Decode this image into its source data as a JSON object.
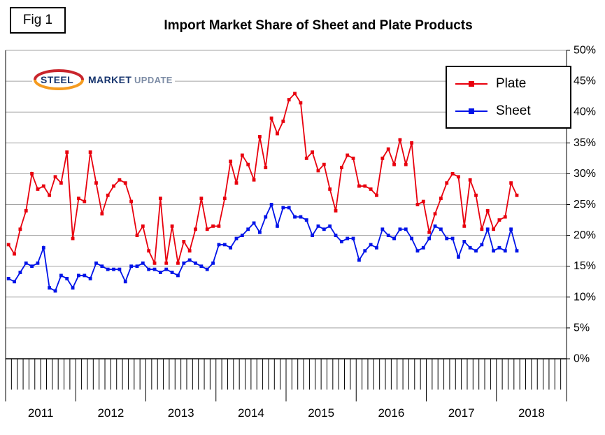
{
  "figure_label": "Fig 1",
  "title": "Import Market Share of Sheet and Plate Products",
  "logo": {
    "part1": "STEEL",
    "part2": "MARKET",
    "part3": "UPDATE",
    "text_color": "#17356e",
    "muted_color": "#7e8da6",
    "swoosh_top_color": "#c9252c",
    "swoosh_bottom_color": "#f59b20"
  },
  "chart_data": {
    "type": "line",
    "title": "Import Market Share of Sheet and Plate Products",
    "x_unit": "month",
    "x_start": "2011-01",
    "x_end": "2018-04",
    "x_axis_years": [
      "2011",
      "2012",
      "2013",
      "2014",
      "2015",
      "2016",
      "2017",
      "2018"
    ],
    "ylim": [
      0,
      50
    ],
    "y_tick_step": 5,
    "y_ticks_labels": [
      "50%",
      "45%",
      "40%",
      "35%",
      "30%",
      "25%",
      "20%",
      "15%",
      "10%",
      "5%",
      "0%"
    ],
    "grid": "horizontal",
    "legend_position": "top-right-inside",
    "series": [
      {
        "name": "Plate",
        "color": "#e8000d",
        "marker": "square",
        "values": [
          18.5,
          17,
          21,
          24,
          30,
          27.5,
          28,
          26.5,
          29.5,
          28.5,
          33.5,
          19.5,
          26,
          25.5,
          33.5,
          28.5,
          23.5,
          26.5,
          28,
          29,
          28.5,
          25.5,
          20,
          21.5,
          17.5,
          15.5,
          26,
          15.5,
          21.5,
          15.5,
          19,
          17.5,
          21,
          26,
          21,
          21.5,
          21.5,
          26,
          32,
          28.5,
          33,
          31.5,
          29,
          36,
          31,
          39,
          36.5,
          38.5,
          42,
          43,
          41.5,
          32.5,
          33.5,
          30.5,
          31.5,
          27.5,
          24,
          31,
          33,
          32.5,
          28,
          28,
          27.5,
          26.5,
          32.5,
          34,
          31.5,
          35.5,
          31.5,
          35,
          25,
          25.5,
          20.5,
          23.5,
          26,
          28.5,
          30,
          29.5,
          21.5,
          29,
          26.5,
          21,
          24,
          21,
          22.5,
          23,
          28.5,
          26.5
        ]
      },
      {
        "name": "Sheet",
        "color": "#0013e8",
        "marker": "square",
        "values": [
          13,
          12.5,
          14,
          15.5,
          15,
          15.5,
          18,
          11.5,
          11,
          13.5,
          13,
          11.5,
          13.5,
          13.5,
          13,
          15.5,
          15,
          14.5,
          14.5,
          14.5,
          12.5,
          15,
          15,
          15.5,
          14.5,
          14.5,
          14,
          14.5,
          14,
          13.5,
          15.5,
          16,
          15.5,
          15,
          14.5,
          15.5,
          18.5,
          18.5,
          18,
          19.5,
          20,
          21,
          22,
          20.5,
          23,
          25,
          21.5,
          24.5,
          24.5,
          23,
          23,
          22.5,
          20,
          21.5,
          21,
          21.5,
          20,
          19,
          19.5,
          19.5,
          16,
          17.5,
          18.5,
          18,
          21,
          20,
          19.5,
          21,
          21,
          19.5,
          17.5,
          18,
          19.5,
          21.5,
          21,
          19.5,
          19.5,
          16.5,
          19,
          18,
          17.5,
          18.5,
          21,
          17.5,
          18,
          17.5,
          21,
          17.5
        ]
      }
    ]
  }
}
